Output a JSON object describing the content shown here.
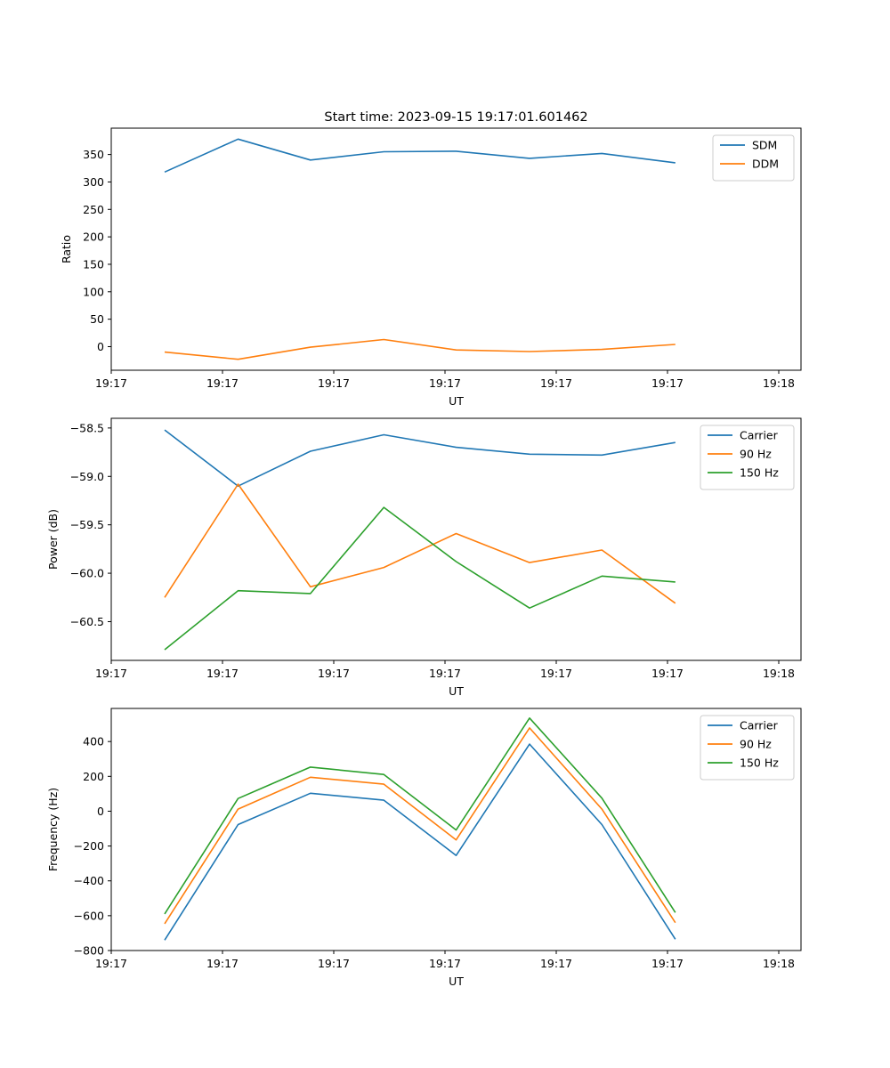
{
  "figure_title": "Start time: 2023-09-15 19:17:01.601462",
  "chart_data": [
    {
      "type": "line",
      "title": "Start time: 2023-09-15 19:17:01.601462",
      "xlabel": "UT",
      "ylabel": "Ratio",
      "xlim": [
        0,
        6.2
      ],
      "ylim": [
        -43,
        398
      ],
      "x": [
        0.48,
        1.14,
        1.79,
        2.45,
        3.1,
        3.76,
        4.41,
        5.07
      ],
      "xticks": [
        {
          "value": 0,
          "label": "19:17"
        },
        {
          "value": 1,
          "label": "19:17"
        },
        {
          "value": 2,
          "label": "19:17"
        },
        {
          "value": 3,
          "label": "19:17"
        },
        {
          "value": 4,
          "label": "19:17"
        },
        {
          "value": 5,
          "label": "19:17"
        },
        {
          "value": 6,
          "label": "19:18"
        }
      ],
      "yticks": [
        {
          "value": 0,
          "label": "0"
        },
        {
          "value": 50,
          "label": "50"
        },
        {
          "value": 100,
          "label": "100"
        },
        {
          "value": 150,
          "label": "150"
        },
        {
          "value": 200,
          "label": "200"
        },
        {
          "value": 250,
          "label": "250"
        },
        {
          "value": 300,
          "label": "300"
        },
        {
          "value": 350,
          "label": "350"
        }
      ],
      "legend_position": "top-right",
      "series": [
        {
          "name": "SDM",
          "color": "#1f77b4",
          "values": [
            318,
            378,
            340,
            355,
            356,
            343,
            352,
            335
          ]
        },
        {
          "name": "DDM",
          "color": "#ff7f0e",
          "values": [
            -10,
            -23,
            -1,
            13,
            -6,
            -9,
            -5,
            4
          ]
        }
      ]
    },
    {
      "type": "line",
      "title": "",
      "xlabel": "UT",
      "ylabel": "Power (dB)",
      "xlim": [
        0,
        6.2
      ],
      "ylim": [
        -60.9,
        -58.4
      ],
      "x": [
        0.48,
        1.14,
        1.79,
        2.45,
        3.1,
        3.76,
        4.41,
        5.07
      ],
      "xticks": [
        {
          "value": 0,
          "label": "19:17"
        },
        {
          "value": 1,
          "label": "19:17"
        },
        {
          "value": 2,
          "label": "19:17"
        },
        {
          "value": 3,
          "label": "19:17"
        },
        {
          "value": 4,
          "label": "19:17"
        },
        {
          "value": 5,
          "label": "19:17"
        },
        {
          "value": 6,
          "label": "19:18"
        }
      ],
      "yticks": [
        {
          "value": -60.5,
          "label": "−60.5"
        },
        {
          "value": -60.0,
          "label": "−60.0"
        },
        {
          "value": -59.5,
          "label": "−59.5"
        },
        {
          "value": -59.0,
          "label": "−59.0"
        },
        {
          "value": -58.5,
          "label": "−58.5"
        }
      ],
      "legend_position": "top-right",
      "series": [
        {
          "name": "Carrier",
          "color": "#1f77b4",
          "values": [
            -58.52,
            -59.1,
            -58.74,
            -58.57,
            -58.7,
            -58.77,
            -58.78,
            -58.65
          ]
        },
        {
          "name": "90 Hz",
          "color": "#ff7f0e",
          "values": [
            -60.25,
            -59.08,
            -60.14,
            -59.94,
            -59.59,
            -59.89,
            -59.76,
            -60.31
          ]
        },
        {
          "name": "150 Hz",
          "color": "#2ca02c",
          "values": [
            -60.79,
            -60.18,
            -60.21,
            -59.32,
            -59.88,
            -60.36,
            -60.03,
            -60.09
          ]
        }
      ]
    },
    {
      "type": "line",
      "title": "",
      "xlabel": "UT",
      "ylabel": "Frequency (Hz)",
      "xlim": [
        0,
        6.2
      ],
      "ylim": [
        -800,
        590
      ],
      "x": [
        0.48,
        1.14,
        1.79,
        2.45,
        3.1,
        3.76,
        4.41,
        5.07
      ],
      "xticks": [
        {
          "value": 0,
          "label": "19:17"
        },
        {
          "value": 1,
          "label": "19:17"
        },
        {
          "value": 2,
          "label": "19:17"
        },
        {
          "value": 3,
          "label": "19:17"
        },
        {
          "value": 4,
          "label": "19:17"
        },
        {
          "value": 5,
          "label": "19:17"
        },
        {
          "value": 6,
          "label": "19:18"
        }
      ],
      "yticks": [
        {
          "value": -800,
          "label": "−800"
        },
        {
          "value": -600,
          "label": "−600"
        },
        {
          "value": -400,
          "label": "−400"
        },
        {
          "value": -200,
          "label": "−200"
        },
        {
          "value": 0,
          "label": "0"
        },
        {
          "value": 200,
          "label": "200"
        },
        {
          "value": 400,
          "label": "400"
        }
      ],
      "legend_position": "top-right",
      "series": [
        {
          "name": "Carrier",
          "color": "#1f77b4",
          "values": [
            -740,
            -77,
            103,
            63,
            -254,
            385,
            -77,
            -735
          ]
        },
        {
          "name": "90 Hz",
          "color": "#ff7f0e",
          "values": [
            -646,
            12,
            195,
            155,
            -165,
            478,
            12,
            -640
          ]
        },
        {
          "name": "150 Hz",
          "color": "#2ca02c",
          "values": [
            -590,
            73,
            253,
            211,
            -108,
            535,
            75,
            -582
          ]
        }
      ]
    }
  ]
}
